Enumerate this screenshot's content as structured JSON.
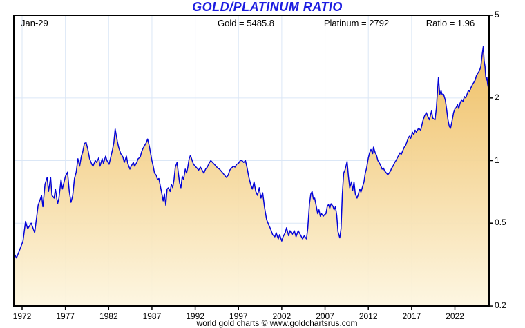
{
  "title": "GOLD/PLATINUM RATIO",
  "header": {
    "date": "Jan-29",
    "gold": "Gold = 5485.8",
    "platinum": "Platinum = 2792",
    "ratio": "Ratio = 1.96"
  },
  "footer": "world gold charts © www.goldchartsrus.com",
  "colors": {
    "title": "#1c1ce0",
    "line": "#0202d8",
    "grid": "#dbe7f6",
    "border": "#000000",
    "fill_top": "#ecb348",
    "fill_bottom": "#fdf6e0"
  },
  "chart_data": {
    "type": "area",
    "title": "GOLD/PLATINUM RATIO",
    "xlabel": "",
    "ylabel": "",
    "y_scale": "log",
    "y_ticks": [
      5,
      2,
      1,
      0.5,
      0.2
    ],
    "x_ticks": [
      1972,
      1977,
      1982,
      1987,
      1992,
      1997,
      2002,
      2007,
      2012,
      2017,
      2022
    ],
    "x_range": [
      1971.0,
      2025.94
    ],
    "y_range": [
      0.2,
      5
    ],
    "grid": true,
    "legend": "none",
    "series": [
      {
        "name": "Gold/Platinum Ratio",
        "points": [
          [
            1971.0,
            0.36
          ],
          [
            1971.35,
            0.34
          ],
          [
            1971.7,
            0.37
          ],
          [
            1972.1,
            0.41
          ],
          [
            1972.4,
            0.51
          ],
          [
            1972.65,
            0.47
          ],
          [
            1973.05,
            0.5
          ],
          [
            1973.45,
            0.45
          ],
          [
            1973.85,
            0.61
          ],
          [
            1974.25,
            0.68
          ],
          [
            1974.4,
            0.6
          ],
          [
            1974.65,
            0.77
          ],
          [
            1974.9,
            0.83
          ],
          [
            1975.05,
            0.71
          ],
          [
            1975.3,
            0.83
          ],
          [
            1975.45,
            0.68
          ],
          [
            1975.7,
            0.66
          ],
          [
            1975.85,
            0.73
          ],
          [
            1976.1,
            0.62
          ],
          [
            1976.25,
            0.66
          ],
          [
            1976.5,
            0.81
          ],
          [
            1976.65,
            0.73
          ],
          [
            1976.85,
            0.79
          ],
          [
            1977.0,
            0.84
          ],
          [
            1977.25,
            0.88
          ],
          [
            1977.45,
            0.71
          ],
          [
            1977.65,
            0.63
          ],
          [
            1977.85,
            0.68
          ],
          [
            1978.05,
            0.82
          ],
          [
            1978.25,
            0.88
          ],
          [
            1978.45,
            1.02
          ],
          [
            1978.65,
            0.94
          ],
          [
            1978.85,
            1.05
          ],
          [
            1979.0,
            1.1
          ],
          [
            1979.2,
            1.21
          ],
          [
            1979.4,
            1.22
          ],
          [
            1979.6,
            1.13
          ],
          [
            1979.8,
            1.02
          ],
          [
            1980.05,
            0.96
          ],
          [
            1980.2,
            0.94
          ],
          [
            1980.45,
            1.0
          ],
          [
            1980.6,
            0.98
          ],
          [
            1980.85,
            1.03
          ],
          [
            1981.0,
            0.94
          ],
          [
            1981.25,
            1.02
          ],
          [
            1981.4,
            0.97
          ],
          [
            1981.65,
            1.05
          ],
          [
            1981.8,
            1.0
          ],
          [
            1982.05,
            0.96
          ],
          [
            1982.2,
            1.02
          ],
          [
            1982.45,
            1.13
          ],
          [
            1982.6,
            1.22
          ],
          [
            1982.75,
            1.42
          ],
          [
            1983.0,
            1.24
          ],
          [
            1983.15,
            1.16
          ],
          [
            1983.4,
            1.08
          ],
          [
            1983.65,
            1.04
          ],
          [
            1983.8,
            0.98
          ],
          [
            1984.05,
            1.05
          ],
          [
            1984.2,
            0.97
          ],
          [
            1984.45,
            0.91
          ],
          [
            1984.6,
            0.94
          ],
          [
            1984.85,
            0.98
          ],
          [
            1985.0,
            0.94
          ],
          [
            1985.25,
            0.98
          ],
          [
            1985.4,
            1.02
          ],
          [
            1985.65,
            1.04
          ],
          [
            1985.8,
            1.1
          ],
          [
            1985.95,
            1.14
          ],
          [
            1986.2,
            1.19
          ],
          [
            1986.35,
            1.22
          ],
          [
            1986.5,
            1.27
          ],
          [
            1986.7,
            1.17
          ],
          [
            1986.85,
            1.08
          ],
          [
            1987.0,
            1.0
          ],
          [
            1987.15,
            0.94
          ],
          [
            1987.3,
            0.87
          ],
          [
            1987.5,
            0.85
          ],
          [
            1987.65,
            0.81
          ],
          [
            1987.8,
            0.82
          ],
          [
            1987.95,
            0.76
          ],
          [
            1988.1,
            0.71
          ],
          [
            1988.3,
            0.64
          ],
          [
            1988.45,
            0.69
          ],
          [
            1988.6,
            0.61
          ],
          [
            1988.75,
            0.73
          ],
          [
            1988.9,
            0.74
          ],
          [
            1989.1,
            0.71
          ],
          [
            1989.25,
            0.77
          ],
          [
            1989.4,
            0.74
          ],
          [
            1989.55,
            0.81
          ],
          [
            1989.7,
            0.93
          ],
          [
            1989.9,
            0.98
          ],
          [
            1990.05,
            0.87
          ],
          [
            1990.2,
            0.78
          ],
          [
            1990.35,
            0.74
          ],
          [
            1990.5,
            0.84
          ],
          [
            1990.65,
            0.81
          ],
          [
            1990.85,
            0.91
          ],
          [
            1991.0,
            0.87
          ],
          [
            1991.15,
            0.93
          ],
          [
            1991.3,
            1.02
          ],
          [
            1991.45,
            1.06
          ],
          [
            1991.65,
            1.0
          ],
          [
            1991.8,
            0.96
          ],
          [
            1992.0,
            0.94
          ],
          [
            1992.2,
            0.92
          ],
          [
            1992.4,
            0.9
          ],
          [
            1992.6,
            0.93
          ],
          [
            1992.8,
            0.9
          ],
          [
            1993.0,
            0.87
          ],
          [
            1993.2,
            0.91
          ],
          [
            1993.4,
            0.93
          ],
          [
            1993.6,
            0.97
          ],
          [
            1993.8,
            1.0
          ],
          [
            1994.0,
            0.98
          ],
          [
            1994.2,
            0.96
          ],
          [
            1994.4,
            0.94
          ],
          [
            1994.6,
            0.92
          ],
          [
            1994.8,
            0.91
          ],
          [
            1995.0,
            0.89
          ],
          [
            1995.2,
            0.87
          ],
          [
            1995.4,
            0.85
          ],
          [
            1995.6,
            0.83
          ],
          [
            1995.8,
            0.85
          ],
          [
            1996.0,
            0.9
          ],
          [
            1996.2,
            0.92
          ],
          [
            1996.4,
            0.94
          ],
          [
            1996.6,
            0.93
          ],
          [
            1996.8,
            0.96
          ],
          [
            1997.0,
            0.97
          ],
          [
            1997.2,
            1.0
          ],
          [
            1997.4,
            1.0
          ],
          [
            1997.6,
            0.98
          ],
          [
            1997.8,
            1.0
          ],
          [
            1998.0,
            0.92
          ],
          [
            1998.2,
            0.83
          ],
          [
            1998.4,
            0.77
          ],
          [
            1998.6,
            0.73
          ],
          [
            1998.8,
            0.79
          ],
          [
            1999.0,
            0.71
          ],
          [
            1999.2,
            0.68
          ],
          [
            1999.4,
            0.74
          ],
          [
            1999.6,
            0.66
          ],
          [
            1999.8,
            0.7
          ],
          [
            2000.0,
            0.6
          ],
          [
            2000.25,
            0.52
          ],
          [
            2000.5,
            0.49
          ],
          [
            2000.7,
            0.47
          ],
          [
            2000.95,
            0.44
          ],
          [
            2001.2,
            0.43
          ],
          [
            2001.35,
            0.45
          ],
          [
            2001.6,
            0.42
          ],
          [
            2001.75,
            0.44
          ],
          [
            2002.0,
            0.41
          ],
          [
            2002.15,
            0.43
          ],
          [
            2002.4,
            0.45
          ],
          [
            2002.55,
            0.475
          ],
          [
            2002.8,
            0.435
          ],
          [
            2002.95,
            0.46
          ],
          [
            2003.2,
            0.44
          ],
          [
            2003.45,
            0.46
          ],
          [
            2003.65,
            0.43
          ],
          [
            2003.9,
            0.46
          ],
          [
            2004.15,
            0.44
          ],
          [
            2004.4,
            0.42
          ],
          [
            2004.6,
            0.435
          ],
          [
            2004.85,
            0.42
          ],
          [
            2005.0,
            0.47
          ],
          [
            2005.2,
            0.62
          ],
          [
            2005.35,
            0.69
          ],
          [
            2005.5,
            0.71
          ],
          [
            2005.65,
            0.655
          ],
          [
            2005.8,
            0.66
          ],
          [
            2006.0,
            0.6
          ],
          [
            2006.15,
            0.555
          ],
          [
            2006.3,
            0.58
          ],
          [
            2006.45,
            0.54
          ],
          [
            2006.6,
            0.555
          ],
          [
            2006.8,
            0.54
          ],
          [
            2006.95,
            0.55
          ],
          [
            2007.1,
            0.555
          ],
          [
            2007.25,
            0.6
          ],
          [
            2007.4,
            0.615
          ],
          [
            2007.55,
            0.59
          ],
          [
            2007.7,
            0.62
          ],
          [
            2007.9,
            0.605
          ],
          [
            2008.05,
            0.58
          ],
          [
            2008.2,
            0.6
          ],
          [
            2008.35,
            0.545
          ],
          [
            2008.5,
            0.455
          ],
          [
            2008.7,
            0.425
          ],
          [
            2008.85,
            0.47
          ],
          [
            2009.0,
            0.69
          ],
          [
            2009.15,
            0.87
          ],
          [
            2009.3,
            0.9
          ],
          [
            2009.55,
            0.99
          ],
          [
            2009.7,
            0.84
          ],
          [
            2009.85,
            0.74
          ],
          [
            2010.05,
            0.79
          ],
          [
            2010.2,
            0.72
          ],
          [
            2010.35,
            0.79
          ],
          [
            2010.5,
            0.69
          ],
          [
            2010.7,
            0.66
          ],
          [
            2010.85,
            0.69
          ],
          [
            2011.0,
            0.73
          ],
          [
            2011.15,
            0.705
          ],
          [
            2011.3,
            0.74
          ],
          [
            2011.5,
            0.79
          ],
          [
            2011.65,
            0.87
          ],
          [
            2011.8,
            0.92
          ],
          [
            2012.0,
            1.03
          ],
          [
            2012.15,
            1.09
          ],
          [
            2012.3,
            1.13
          ],
          [
            2012.5,
            1.08
          ],
          [
            2012.6,
            1.16
          ],
          [
            2012.8,
            1.09
          ],
          [
            2012.95,
            1.06
          ],
          [
            2013.1,
            1.0
          ],
          [
            2013.3,
            0.97
          ],
          [
            2013.45,
            0.94
          ],
          [
            2013.6,
            0.91
          ],
          [
            2013.75,
            0.92
          ],
          [
            2013.9,
            0.89
          ],
          [
            2014.1,
            0.87
          ],
          [
            2014.25,
            0.855
          ],
          [
            2014.4,
            0.87
          ],
          [
            2014.55,
            0.89
          ],
          [
            2014.7,
            0.92
          ],
          [
            2014.85,
            0.94
          ],
          [
            2015.05,
            0.98
          ],
          [
            2015.2,
            1.0
          ],
          [
            2015.35,
            1.03
          ],
          [
            2015.5,
            1.06
          ],
          [
            2015.65,
            1.09
          ],
          [
            2015.8,
            1.07
          ],
          [
            2016.0,
            1.12
          ],
          [
            2016.15,
            1.16
          ],
          [
            2016.3,
            1.18
          ],
          [
            2016.45,
            1.23
          ],
          [
            2016.6,
            1.28
          ],
          [
            2016.75,
            1.31
          ],
          [
            2016.9,
            1.28
          ],
          [
            2017.1,
            1.37
          ],
          [
            2017.25,
            1.33
          ],
          [
            2017.4,
            1.4
          ],
          [
            2017.55,
            1.37
          ],
          [
            2017.8,
            1.43
          ],
          [
            2018.05,
            1.4
          ],
          [
            2018.3,
            1.55
          ],
          [
            2018.5,
            1.64
          ],
          [
            2018.7,
            1.7
          ],
          [
            2018.85,
            1.64
          ],
          [
            2019.05,
            1.57
          ],
          [
            2019.3,
            1.73
          ],
          [
            2019.45,
            1.6
          ],
          [
            2019.7,
            1.57
          ],
          [
            2019.85,
            1.77
          ],
          [
            2020.0,
            2.17
          ],
          [
            2020.1,
            2.51
          ],
          [
            2020.25,
            2.08
          ],
          [
            2020.4,
            2.17
          ],
          [
            2020.55,
            2.07
          ],
          [
            2020.7,
            2.08
          ],
          [
            2020.9,
            1.95
          ],
          [
            2021.05,
            1.76
          ],
          [
            2021.2,
            1.57
          ],
          [
            2021.35,
            1.46
          ],
          [
            2021.5,
            1.43
          ],
          [
            2021.7,
            1.57
          ],
          [
            2021.85,
            1.7
          ],
          [
            2022.0,
            1.77
          ],
          [
            2022.15,
            1.8
          ],
          [
            2022.3,
            1.86
          ],
          [
            2022.45,
            1.78
          ],
          [
            2022.6,
            1.89
          ],
          [
            2022.75,
            1.95
          ],
          [
            2022.95,
            1.93
          ],
          [
            2023.1,
            2.03
          ],
          [
            2023.25,
            2.0
          ],
          [
            2023.4,
            2.08
          ],
          [
            2023.55,
            2.17
          ],
          [
            2023.7,
            2.15
          ],
          [
            2023.85,
            2.24
          ],
          [
            2024.05,
            2.33
          ],
          [
            2024.2,
            2.38
          ],
          [
            2024.35,
            2.44
          ],
          [
            2024.5,
            2.57
          ],
          [
            2024.65,
            2.63
          ],
          [
            2024.85,
            2.71
          ],
          [
            2025.0,
            2.84
          ],
          [
            2025.15,
            3.24
          ],
          [
            2025.28,
            3.54
          ],
          [
            2025.38,
            3.0
          ],
          [
            2025.48,
            2.84
          ],
          [
            2025.55,
            2.57
          ],
          [
            2025.63,
            2.44
          ],
          [
            2025.7,
            2.51
          ],
          [
            2025.78,
            2.33
          ],
          [
            2025.85,
            2.26
          ],
          [
            2025.94,
            1.96
          ]
        ]
      }
    ]
  }
}
